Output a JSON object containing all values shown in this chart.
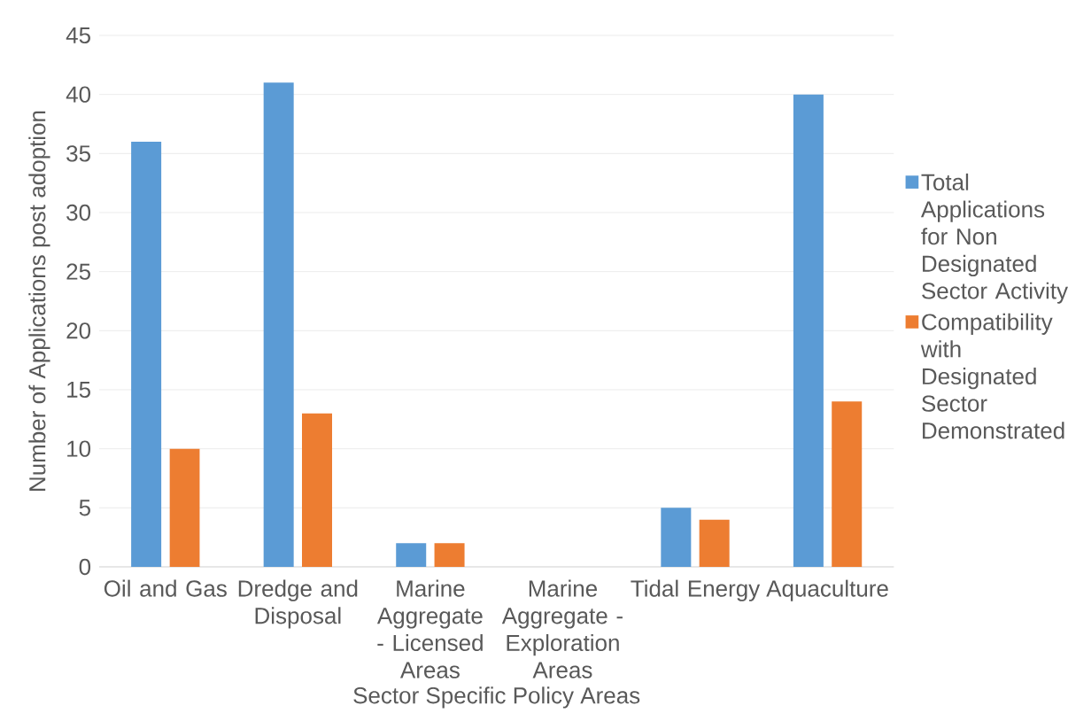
{
  "chart_data": {
    "type": "bar",
    "xlabel": "Sector Specific Policy Areas",
    "ylabel": "Number of Applications post adoption",
    "categories": [
      "Oil and Gas",
      "Dredge and Disposal",
      "Marine Aggregate - Licensed Areas",
      "Marine Aggregate - Exploration Areas",
      "Tidal Energy",
      "Aquaculture"
    ],
    "series": [
      {
        "name": "Total Applications for Non Designated Sector Activity",
        "color": "#5b9bd5",
        "values": [
          36,
          41,
          2,
          0,
          5,
          40
        ]
      },
      {
        "name": "Compatibility with Designated Sector Demonstrated",
        "color": "#ed7d31",
        "values": [
          10,
          13,
          2,
          0,
          4,
          14
        ]
      }
    ],
    "ylim": [
      0,
      45
    ],
    "yticks": [
      0,
      5,
      10,
      15,
      20,
      25,
      30,
      35,
      40,
      45
    ],
    "grid": "y",
    "legend": "right"
  }
}
